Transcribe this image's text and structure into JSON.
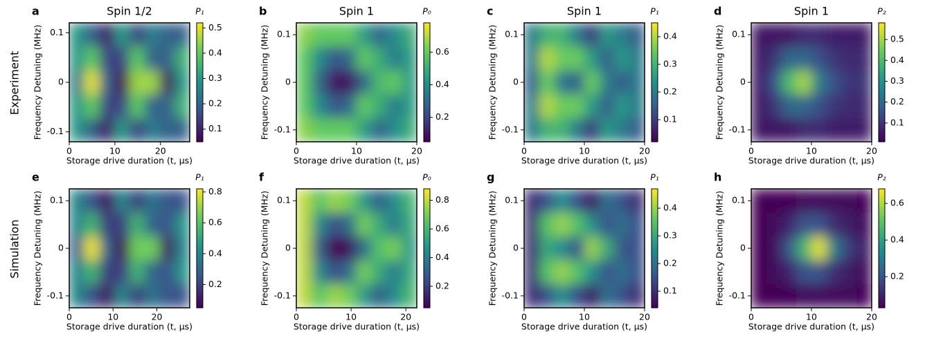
{
  "row_labels": [
    "Experiment",
    "Simulation"
  ],
  "chart_data": [
    {
      "type": "heatmap",
      "label": "a",
      "title": "Spin 1/2",
      "xlabel": "Storage drive duration (t, μs)",
      "ylabel": "Frequency Detuning (MHz)",
      "xlim": [
        0,
        26.4
      ],
      "xticks": [
        0,
        10,
        20
      ],
      "ylim": [
        -0.12,
        0.12
      ],
      "yticks": [
        0.1,
        0,
        -0.1
      ],
      "colormap": "viridis",
      "colorbar": {
        "label": "P₁",
        "lim": [
          0.05,
          0.52
        ],
        "ticks": [
          0.1,
          0.2,
          0.3,
          0.4,
          0.5
        ]
      },
      "values": [
        [
          0.3,
          0.2,
          0.1,
          0.3,
          0.15,
          0.25,
          0.2,
          0.2
        ],
        [
          0.3,
          0.4,
          0.15,
          0.15,
          0.4,
          0.2,
          0.2,
          0.35
        ],
        [
          0.25,
          0.5,
          0.2,
          0.05,
          0.45,
          0.45,
          0.08,
          0.3
        ],
        [
          0.3,
          0.4,
          0.15,
          0.15,
          0.4,
          0.2,
          0.2,
          0.35
        ],
        [
          0.3,
          0.2,
          0.1,
          0.3,
          0.15,
          0.25,
          0.2,
          0.2
        ]
      ]
    },
    {
      "type": "heatmap",
      "label": "b",
      "title": "Spin 1",
      "xlabel": "Storage drive duration (t, μs)",
      "ylabel": "Frequency Detuning (MHz)",
      "xlim": [
        0,
        20
      ],
      "xticks": [
        0,
        10,
        20
      ],
      "ylim": [
        -0.125,
        0.125
      ],
      "yticks": [
        0.1,
        0,
        -0.1
      ],
      "colormap": "viridis",
      "colorbar": {
        "label": "P₀",
        "lim": [
          0.05,
          0.78
        ],
        "ticks": [
          0.2,
          0.4,
          0.6
        ]
      },
      "values": [
        [
          0.65,
          0.6,
          0.6,
          0.6,
          0.45,
          0.3,
          0.4,
          0.5
        ],
        [
          0.6,
          0.4,
          0.25,
          0.3,
          0.6,
          0.5,
          0.35,
          0.45
        ],
        [
          0.6,
          0.3,
          0.1,
          0.1,
          0.3,
          0.55,
          0.6,
          0.45
        ],
        [
          0.6,
          0.4,
          0.25,
          0.3,
          0.6,
          0.5,
          0.35,
          0.45
        ],
        [
          0.65,
          0.6,
          0.6,
          0.6,
          0.45,
          0.3,
          0.4,
          0.5
        ]
      ]
    },
    {
      "type": "heatmap",
      "label": "c",
      "title": "Spin 1",
      "xlabel": "Storage drive duration (t, μs)",
      "ylabel": "Frequency Detuning (MHz)",
      "xlim": [
        0,
        20
      ],
      "xticks": [
        0,
        10,
        20
      ],
      "ylim": [
        -0.125,
        0.125
      ],
      "yticks": [
        0.1,
        0,
        -0.1
      ],
      "colormap": "viridis",
      "colorbar": {
        "label": "P₁",
        "lim": [
          0.02,
          0.45
        ],
        "ticks": [
          0.1,
          0.2,
          0.3,
          0.4
        ]
      },
      "values": [
        [
          0.2,
          0.3,
          0.3,
          0.2,
          0.1,
          0.25,
          0.2,
          0.15
        ],
        [
          0.2,
          0.4,
          0.35,
          0.35,
          0.25,
          0.15,
          0.25,
          0.2
        ],
        [
          0.15,
          0.35,
          0.2,
          0.15,
          0.35,
          0.2,
          0.15,
          0.2
        ],
        [
          0.2,
          0.4,
          0.35,
          0.35,
          0.25,
          0.15,
          0.25,
          0.2
        ],
        [
          0.2,
          0.3,
          0.3,
          0.2,
          0.1,
          0.25,
          0.2,
          0.15
        ]
      ]
    },
    {
      "type": "heatmap",
      "label": "d",
      "title": "Spin 1",
      "xlabel": "Storage drive duration (t, μs)",
      "ylabel": "Frequency Detuning (MHz)",
      "xlim": [
        0,
        20
      ],
      "xticks": [
        0,
        10,
        20
      ],
      "ylim": [
        -0.125,
        0.125
      ],
      "yticks": [
        0.1,
        0,
        -0.1
      ],
      "colormap": "viridis",
      "colorbar": {
        "label": "P₂",
        "lim": [
          0.01,
          0.58
        ],
        "ticks": [
          0.1,
          0.2,
          0.3,
          0.4,
          0.5
        ]
      },
      "values": [
        [
          0.05,
          0.05,
          0.05,
          0.08,
          0.08,
          0.06,
          0.06,
          0.06
        ],
        [
          0.05,
          0.1,
          0.2,
          0.2,
          0.15,
          0.1,
          0.08,
          0.08
        ],
        [
          0.05,
          0.15,
          0.4,
          0.5,
          0.25,
          0.15,
          0.1,
          0.1
        ],
        [
          0.05,
          0.1,
          0.2,
          0.2,
          0.15,
          0.1,
          0.08,
          0.08
        ],
        [
          0.05,
          0.05,
          0.05,
          0.08,
          0.08,
          0.06,
          0.06,
          0.06
        ]
      ]
    },
    {
      "type": "heatmap",
      "label": "e",
      "xlabel": "Storage drive duration (t, μs)",
      "ylabel": "Frequency Detuning (MHz)",
      "xlim": [
        0,
        27.5
      ],
      "xticks": [
        0,
        10,
        20
      ],
      "ylim": [
        -0.125,
        0.125
      ],
      "yticks": [
        0.1,
        0,
        -0.1
      ],
      "colormap": "viridis",
      "colorbar": {
        "label": "P₁",
        "lim": [
          0.05,
          0.82
        ],
        "ticks": [
          0.2,
          0.4,
          0.6,
          0.8
        ]
      },
      "values": [
        [
          0.4,
          0.25,
          0.1,
          0.4,
          0.2,
          0.35,
          0.25,
          0.25
        ],
        [
          0.4,
          0.55,
          0.2,
          0.2,
          0.55,
          0.3,
          0.25,
          0.45
        ],
        [
          0.3,
          0.8,
          0.3,
          0.05,
          0.65,
          0.65,
          0.1,
          0.4
        ],
        [
          0.4,
          0.55,
          0.2,
          0.2,
          0.55,
          0.3,
          0.25,
          0.45
        ],
        [
          0.4,
          0.25,
          0.1,
          0.4,
          0.2,
          0.35,
          0.25,
          0.25
        ]
      ]
    },
    {
      "type": "heatmap",
      "label": "f",
      "xlabel": "Storage drive duration (t, μs)",
      "ylabel": "Frequency Detuning (MHz)",
      "xlim": [
        0,
        22
      ],
      "xticks": [
        0,
        10,
        20
      ],
      "ylim": [
        -0.125,
        0.125
      ],
      "yticks": [
        0.1,
        0,
        -0.1
      ],
      "colormap": "viridis",
      "colorbar": {
        "label": "P₀",
        "lim": [
          0.05,
          0.88
        ],
        "ticks": [
          0.2,
          0.4,
          0.6,
          0.8
        ]
      },
      "values": [
        [
          0.8,
          0.65,
          0.75,
          0.7,
          0.5,
          0.3,
          0.45,
          0.6
        ],
        [
          0.8,
          0.45,
          0.25,
          0.35,
          0.7,
          0.55,
          0.4,
          0.55
        ],
        [
          0.8,
          0.3,
          0.05,
          0.1,
          0.35,
          0.65,
          0.7,
          0.5
        ],
        [
          0.8,
          0.45,
          0.25,
          0.35,
          0.7,
          0.55,
          0.4,
          0.55
        ],
        [
          0.8,
          0.65,
          0.75,
          0.7,
          0.5,
          0.3,
          0.45,
          0.6
        ]
      ]
    },
    {
      "type": "heatmap",
      "label": "g",
      "xlabel": "Storage drive duration (t, μs)",
      "ylabel": "Frequency Detuning (MHz)",
      "xlim": [
        0,
        20
      ],
      "xticks": [
        0,
        10,
        20
      ],
      "ylim": [
        -0.125,
        0.125
      ],
      "yticks": [
        0.1,
        0,
        -0.1
      ],
      "colormap": "viridis",
      "colorbar": {
        "label": "P₁",
        "lim": [
          0.04,
          0.47
        ],
        "ticks": [
          0.1,
          0.2,
          0.3,
          0.4
        ]
      },
      "values": [
        [
          0.1,
          0.15,
          0.25,
          0.15,
          0.08,
          0.2,
          0.15,
          0.1
        ],
        [
          0.1,
          0.35,
          0.4,
          0.35,
          0.25,
          0.15,
          0.2,
          0.15
        ],
        [
          0.1,
          0.3,
          0.25,
          0.15,
          0.4,
          0.3,
          0.15,
          0.15
        ],
        [
          0.1,
          0.35,
          0.4,
          0.35,
          0.25,
          0.15,
          0.2,
          0.15
        ],
        [
          0.1,
          0.15,
          0.25,
          0.15,
          0.08,
          0.2,
          0.15,
          0.1
        ]
      ]
    },
    {
      "type": "heatmap",
      "label": "h",
      "xlabel": "Storage drive duration (t, μs)",
      "ylabel": "Frequency Detuning (MHz)",
      "xlim": [
        0,
        20
      ],
      "xticks": [
        0,
        10,
        20
      ],
      "ylim": [
        -0.125,
        0.125
      ],
      "yticks": [
        0.1,
        0,
        -0.1
      ],
      "colormap": "viridis",
      "colorbar": {
        "label": "P₂",
        "lim": [
          0.03,
          0.68
        ],
        "ticks": [
          0.2,
          0.4,
          0.6
        ]
      },
      "values": [
        [
          0.03,
          0.03,
          0.04,
          0.05,
          0.06,
          0.05,
          0.05,
          0.04
        ],
        [
          0.03,
          0.05,
          0.1,
          0.2,
          0.2,
          0.12,
          0.08,
          0.05
        ],
        [
          0.03,
          0.05,
          0.2,
          0.45,
          0.65,
          0.3,
          0.15,
          0.08
        ],
        [
          0.03,
          0.05,
          0.1,
          0.2,
          0.2,
          0.12,
          0.08,
          0.05
        ],
        [
          0.03,
          0.03,
          0.04,
          0.05,
          0.06,
          0.05,
          0.05,
          0.04
        ]
      ]
    }
  ]
}
